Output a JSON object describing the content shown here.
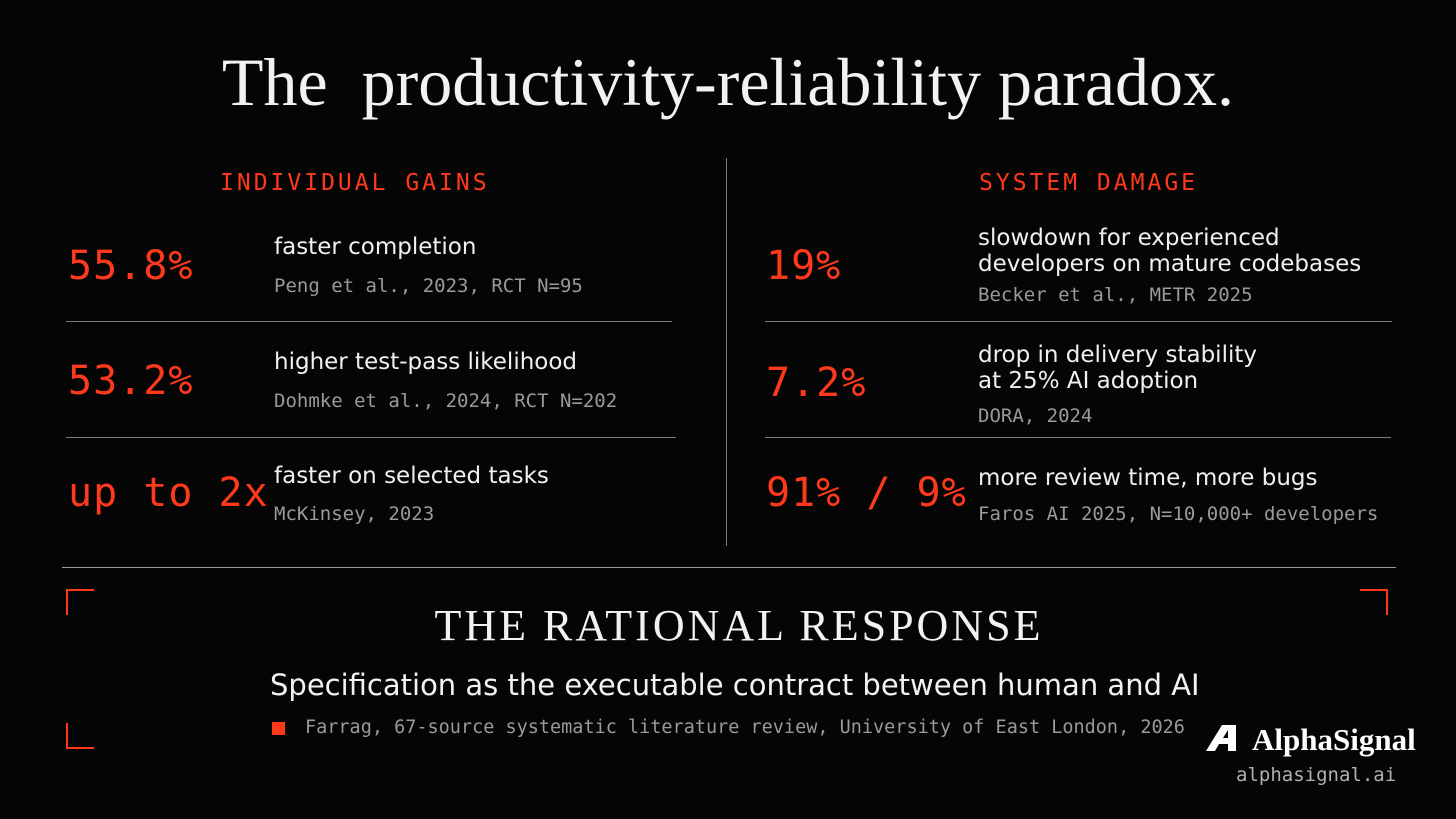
{
  "title": "The  productivity-reliability paradox.",
  "left": {
    "heading": "INDIVIDUAL GAINS",
    "rows": [
      {
        "stat": "55.8%",
        "lines": [
          "faster completion"
        ],
        "source": "Peng et al., 2023, RCT N=95"
      },
      {
        "stat": "53.2%",
        "lines": [
          "higher test-pass likelihood"
        ],
        "source": "Dohmke et al., 2024, RCT N=202"
      },
      {
        "stat": "up to 2x",
        "lines": [
          "faster on selected tasks"
        ],
        "source": "McKinsey, 2023"
      }
    ]
  },
  "right": {
    "heading": "SYSTEM DAMAGE",
    "rows": [
      {
        "stat": "19%",
        "lines": [
          "slowdown for experienced",
          "developers on mature codebases"
        ],
        "source": "Becker et al., METR 2025"
      },
      {
        "stat": "7.2%",
        "lines": [
          "drop in delivery stability",
          "at 25% AI adoption"
        ],
        "source": "DORA, 2024"
      },
      {
        "stat": "91% / 9%",
        "lines": [
          "more review time, more bugs"
        ],
        "source": "Faros AI 2025, N=10,000+ developers"
      }
    ]
  },
  "response": {
    "heading": "THE RATIONAL RESPONSE",
    "text": "Specification as the executable contract between human and AI",
    "source": "Farrag, 67-source systematic literature review, University of East London, 2026"
  },
  "brand": {
    "name": "AlphaSignal",
    "url": "alphasignal.ai"
  }
}
